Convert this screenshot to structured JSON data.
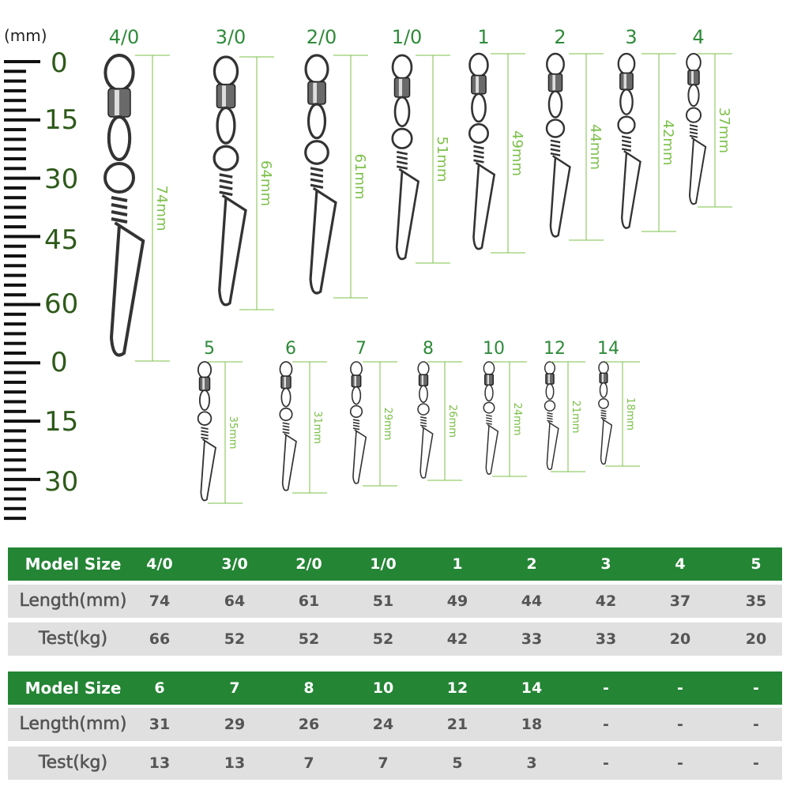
{
  "unit_label": "(mm)",
  "ruler_labels": [
    "0",
    "15",
    "30",
    "45",
    "60",
    "0",
    "15",
    "30"
  ],
  "swivels_row1": [
    {
      "size": "4/0",
      "length": "74mm"
    },
    {
      "size": "3/0",
      "length": "64mm"
    },
    {
      "size": "2/0",
      "length": "61mm"
    },
    {
      "size": "1/0",
      "length": "51mm"
    },
    {
      "size": "1",
      "length": "49mm"
    },
    {
      "size": "2",
      "length": "44mm"
    },
    {
      "size": "3",
      "length": "42mm"
    },
    {
      "size": "4",
      "length": "37mm"
    }
  ],
  "swivels_row2": [
    {
      "size": "5",
      "length": "35mm"
    },
    {
      "size": "6",
      "length": "31mm"
    },
    {
      "size": "7",
      "length": "29mm"
    },
    {
      "size": "8",
      "length": "26mm"
    },
    {
      "size": "10",
      "length": "24mm"
    },
    {
      "size": "12",
      "length": "21mm"
    },
    {
      "size": "14",
      "length": "18mm"
    }
  ],
  "colors": {
    "header_green": "#248535",
    "label_green": "#2f8a3a",
    "dim_green": "#7cc04a",
    "ruler_text": "#2e5a1a",
    "row_gray": "#e0e0e0"
  },
  "tables": [
    {
      "rows": [
        {
          "label": "Model Size",
          "values": [
            "4/0",
            "3/0",
            "2/0",
            "1/0",
            "1",
            "2",
            "3",
            "4",
            "5"
          ]
        },
        {
          "label": "Length(mm)",
          "values": [
            "74",
            "64",
            "61",
            "51",
            "49",
            "44",
            "42",
            "37",
            "35"
          ]
        },
        {
          "label": "Test(kg)",
          "values": [
            "66",
            "52",
            "52",
            "52",
            "42",
            "33",
            "33",
            "20",
            "20"
          ]
        }
      ]
    },
    {
      "rows": [
        {
          "label": "Model Size",
          "values": [
            "6",
            "7",
            "8",
            "10",
            "12",
            "14",
            "-",
            "-",
            "-"
          ]
        },
        {
          "label": "Length(mm)",
          "values": [
            "31",
            "29",
            "26",
            "24",
            "21",
            "18",
            "-",
            "-",
            "-"
          ]
        },
        {
          "label": "Test(kg)",
          "values": [
            "13",
            "13",
            "7",
            "7",
            "5",
            "3",
            "-",
            "-",
            "-"
          ]
        }
      ]
    }
  ]
}
